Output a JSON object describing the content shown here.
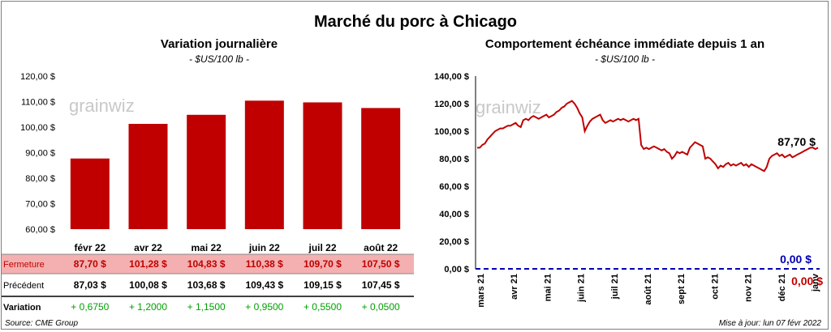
{
  "title": "Marché du porc à Chicago",
  "footer": {
    "source": "Source: CME Group",
    "updated": "Mise à jour: lun 07 févr 2022"
  },
  "watermark": "grainwiz",
  "colors": {
    "bar": "#c00000",
    "line": "#c00000",
    "row_highlight": "#f4b0b0",
    "zero_line": "#0000b3",
    "positive": "#00a000"
  },
  "chart_data": [
    {
      "type": "bar",
      "title": "Variation  journalière",
      "subtitle": "- $US/100 lb -",
      "categories": [
        "févr 22",
        "avr 22",
        "mai 22",
        "juin 22",
        "juil 22",
        "août 22"
      ],
      "values": [
        87.7,
        101.28,
        104.83,
        110.38,
        109.7,
        107.5
      ],
      "ylim": [
        60,
        120
      ],
      "yticks": [
        "60,00 $",
        "70,00 $",
        "80,00 $",
        "90,00 $",
        "100,00 $",
        "110,00 $",
        "120,00 $"
      ],
      "table": {
        "rows": [
          {
            "label": "Fermeture",
            "values": [
              "87,70  $",
              "101,28  $",
              "104,83  $",
              "110,38  $",
              "109,70  $",
              "107,50  $"
            ]
          },
          {
            "label": "Précédent",
            "values": [
              "87,03  $",
              "100,08  $",
              "103,68  $",
              "109,43  $",
              "109,15  $",
              "107,45  $"
            ]
          },
          {
            "label": "Variation",
            "values": [
              "+ 0,6750",
              "+ 1,2000",
              "+ 1,1500",
              "+ 0,9500",
              "+ 0,5500",
              "+ 0,0500"
            ]
          }
        ]
      }
    },
    {
      "type": "line",
      "title": "Comportement  échéance immédiate depuis 1 an",
      "subtitle": "- $US/100 lb -",
      "ylim": [
        0,
        140
      ],
      "yticks": [
        "0,00 $",
        "20,00 $",
        "40,00 $",
        "60,00 $",
        "80,00 $",
        "100,00 $",
        "120,00 $",
        "140,00 $"
      ],
      "xticks": [
        "mars 21",
        "avr 21",
        "mai 21",
        "juin 21",
        "juil 21",
        "août 21",
        "sept 21",
        "oct 21",
        "nov 21",
        "déc 21",
        "janv"
      ],
      "values": [
        88,
        88,
        90,
        91,
        94,
        96,
        98,
        100,
        101,
        102,
        102,
        103,
        104,
        104,
        105,
        106,
        104,
        103,
        108,
        109,
        108,
        110,
        111,
        110,
        109,
        110,
        111,
        112,
        110,
        111,
        112,
        114,
        115,
        117,
        118,
        120,
        121,
        122,
        120,
        117,
        113,
        110,
        100,
        104,
        107,
        109,
        110,
        111,
        112,
        108,
        106,
        107,
        108,
        107,
        108,
        109,
        108,
        109,
        108,
        107,
        108,
        109,
        108,
        109,
        90,
        87,
        88,
        87,
        88,
        89,
        88,
        87,
        86,
        87,
        85,
        84,
        80,
        82,
        85,
        84,
        85,
        84,
        83,
        88,
        90,
        92,
        91,
        90,
        89,
        80,
        81,
        80,
        78,
        76,
        73,
        75,
        74,
        76,
        77,
        75,
        76,
        75,
        76,
        77,
        75,
        76,
        74,
        76,
        75,
        74,
        73,
        72,
        71,
        74,
        80,
        82,
        83,
        84,
        82,
        83,
        81,
        82,
        83,
        81,
        82,
        83,
        84,
        85,
        86,
        87,
        88,
        88,
        87,
        88
      ],
      "last_label": "87,70 $",
      "zero_label_blue": "0,00 $",
      "zero_label_red": "0,00 $"
    }
  ]
}
